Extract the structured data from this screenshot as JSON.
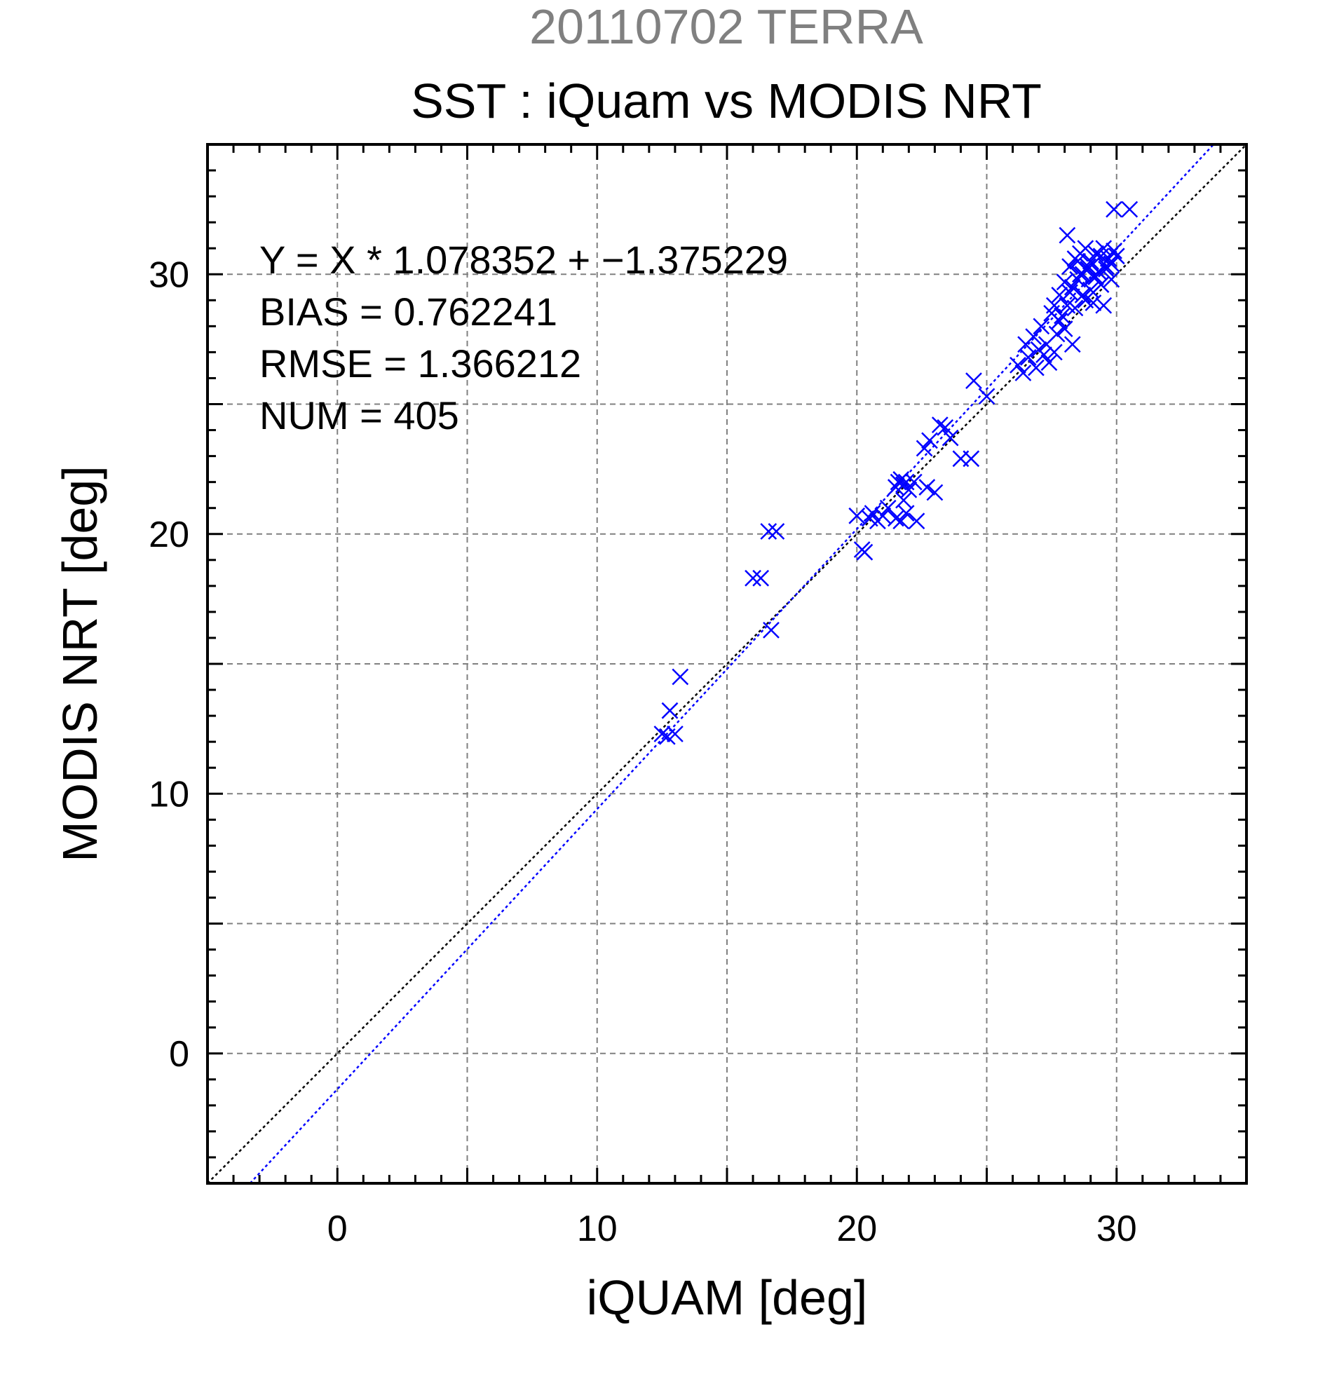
{
  "chart_data": {
    "type": "scatter",
    "supertitle": "20110702 TERRA",
    "title": "SST : iQuam vs MODIS NRT",
    "xlabel": "iQUAM [deg]",
    "ylabel": "MODIS NRT [deg]",
    "xlim": [
      -5,
      35
    ],
    "ylim": [
      -5,
      35
    ],
    "x_ticks": [
      0,
      10,
      20,
      30
    ],
    "y_ticks": [
      0,
      10,
      20,
      30
    ],
    "x_tick_labels": [
      "0",
      "10",
      "20",
      "30"
    ],
    "y_tick_labels": [
      "0",
      "10",
      "20",
      "30"
    ],
    "grid": true,
    "annotations": [
      "Y = X * 1.078352 + −1.375229",
      "BIAS = 0.762241",
      "RMSE = 1.366212",
      "NUM = 405"
    ],
    "lines": [
      {
        "kind": "one-to-one",
        "slope": 1,
        "intercept": 0,
        "color": "#000000",
        "style": "dotted"
      },
      {
        "kind": "regression",
        "slope": 1.078352,
        "intercept": -1.375229,
        "color": "#0000ff",
        "style": "dotted"
      }
    ],
    "colors": {
      "points": "#0000ff",
      "supertitle": "#808080",
      "grid": "#808080"
    },
    "series": [
      {
        "marker": "x",
        "x": [
          12.5,
          12.8,
          12.7,
          13.0,
          13.2,
          16.0,
          16.3,
          16.6,
          16.9,
          16.7,
          20.0,
          20.2,
          20.3,
          20.6,
          20.8,
          21.0,
          21.2,
          20.5,
          21.5,
          21.6,
          21.7,
          21.8,
          21.9,
          22.0,
          22.2,
          21.5,
          21.7,
          21.9,
          22.3,
          21.8,
          22.6,
          22.8,
          22.7,
          23.0,
          23.2,
          23.4,
          23.6,
          24.0,
          24.4,
          24.5,
          25.0,
          26.2,
          26.4,
          26.5,
          26.6,
          26.8,
          27.0,
          27.1,
          27.3,
          27.5,
          27.6,
          27.7,
          27.8,
          27.9,
          28.0,
          28.1,
          28.2,
          28.3,
          28.4,
          28.5,
          28.6,
          28.7,
          28.8,
          28.9,
          29.0,
          29.1,
          29.2,
          29.3,
          29.4,
          29.5,
          29.6,
          29.7,
          29.8,
          29.9,
          30.0,
          28.2,
          28.4,
          28.6,
          28.8,
          29.0,
          29.2,
          29.4,
          29.6,
          29.8,
          28.5,
          28.7,
          28.9,
          29.1,
          29.3,
          29.5,
          27.8,
          28.0,
          27.4,
          27.2,
          26.9,
          28.3,
          29.9,
          30.5,
          28.1,
          27.6
        ],
        "y": [
          12.3,
          13.2,
          12.2,
          12.3,
          14.5,
          18.3,
          18.3,
          20.1,
          20.1,
          16.3,
          20.7,
          19.4,
          19.3,
          20.8,
          20.5,
          20.7,
          21.0,
          20.6,
          21.8,
          22.0,
          22.1,
          21.9,
          22.0,
          21.7,
          22.0,
          20.6,
          20.5,
          20.8,
          20.5,
          21.3,
          23.3,
          23.6,
          21.8,
          21.6,
          24.2,
          24.1,
          23.7,
          22.9,
          22.9,
          25.9,
          25.3,
          26.5,
          26.2,
          27.3,
          26.8,
          27.6,
          27.1,
          28.0,
          27.3,
          28.5,
          28.8,
          27.7,
          29.2,
          28.4,
          29.7,
          28.8,
          30.3,
          29.5,
          30.6,
          29.8,
          30.8,
          30.0,
          31.0,
          30.2,
          30.5,
          29.9,
          30.8,
          30.1,
          30.7,
          31.0,
          30.3,
          30.6,
          30.4,
          30.9,
          30.7,
          29.3,
          28.7,
          30.0,
          29.0,
          29.4,
          29.9,
          29.6,
          30.2,
          29.8,
          30.5,
          29.2,
          30.3,
          28.9,
          30.1,
          28.8,
          28.2,
          27.9,
          26.6,
          26.9,
          26.4,
          27.3,
          32.5,
          32.5,
          31.5,
          27.0
        ]
      }
    ]
  }
}
